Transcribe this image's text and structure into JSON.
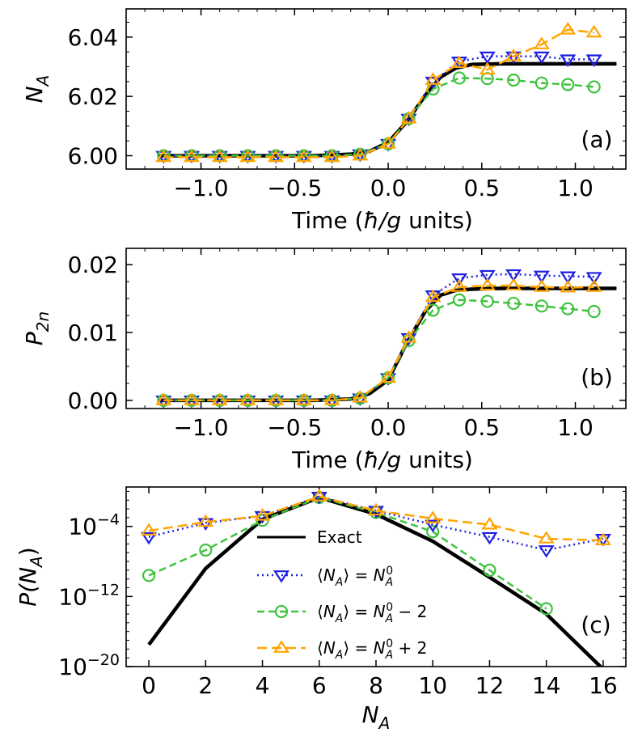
{
  "colors": {
    "exact": "#000000",
    "mean": "#1f1fe0",
    "minus2": "#3fc33f",
    "plus2": "#ffa500"
  },
  "chart_data": [
    {
      "type": "line",
      "panel": "(a)",
      "xlabel": "Time (ħ/g units)",
      "ylabel": "N_A",
      "ylabel_main": "N",
      "ylabel_sub": "A",
      "xlim": [
        -1.4,
        1.27
      ],
      "ylim": [
        5.9955,
        6.0495
      ],
      "xticks": [
        -1.0,
        -0.5,
        0.0,
        0.5,
        1.0
      ],
      "xtick_labels": [
        "−1.0",
        "−0.5",
        "0.0",
        "0.5",
        "1.0"
      ],
      "yticks": [
        6.0,
        6.02,
        6.04
      ],
      "ytick_labels": [
        "6.00",
        "6.02",
        "6.04"
      ],
      "series": [
        {
          "name": "Exact",
          "key": "exact",
          "x": [
            -1.22,
            -0.4,
            -0.2,
            -0.1,
            0.0,
            0.1,
            0.2,
            0.28,
            0.36,
            0.45,
            0.6,
            0.8,
            1.0,
            1.22
          ],
          "y": [
            6.0,
            6.0,
            6.0005,
            6.0015,
            6.0045,
            6.0115,
            6.0205,
            6.0265,
            6.0295,
            6.0308,
            6.031,
            6.031,
            6.031,
            6.031
          ]
        },
        {
          "name": "⟨N_A⟩ = N_A^0",
          "key": "mean",
          "x": [
            -1.2,
            -1.05,
            -0.9,
            -0.75,
            -0.6,
            -0.45,
            -0.3,
            -0.15,
            0.0,
            0.11,
            0.24,
            0.38,
            0.53,
            0.67,
            0.82,
            0.96,
            1.1
          ],
          "y": [
            6.0,
            6.0,
            6.0,
            6.0,
            6.0,
            6.0,
            6.0,
            6.0005,
            6.004,
            6.0125,
            6.025,
            6.0318,
            6.0335,
            6.0335,
            6.0335,
            6.0325,
            6.0325
          ]
        },
        {
          "name": "⟨N_A⟩ = N_A^0 − 2",
          "key": "minus2",
          "x": [
            -1.2,
            -1.05,
            -0.9,
            -0.75,
            -0.6,
            -0.45,
            -0.3,
            -0.15,
            0.0,
            0.11,
            0.24,
            0.38,
            0.53,
            0.67,
            0.82,
            0.96,
            1.1
          ],
          "y": [
            6.0,
            6.0,
            6.0,
            6.0,
            6.0,
            6.0,
            6.0,
            6.0005,
            6.004,
            6.0125,
            6.0225,
            6.0262,
            6.026,
            6.0255,
            6.0245,
            6.024,
            6.0232
          ]
        },
        {
          "name": "⟨N_A⟩ = N_A^0 + 2",
          "key": "plus2",
          "x": [
            -1.2,
            -1.05,
            -0.9,
            -0.75,
            -0.6,
            -0.45,
            -0.3,
            -0.15,
            0.0,
            0.11,
            0.24,
            0.38,
            0.53,
            0.67,
            0.82,
            0.96,
            1.1
          ],
          "y": [
            5.9995,
            5.9995,
            5.9995,
            5.9995,
            5.9995,
            5.9995,
            5.9995,
            6.0,
            6.004,
            6.0125,
            6.0255,
            6.0312,
            6.029,
            6.0335,
            6.0375,
            6.0425,
            6.0415
          ]
        }
      ]
    },
    {
      "type": "line",
      "panel": "(b)",
      "xlabel": "Time (ħ/g units)",
      "ylabel": "P_2n",
      "ylabel_main": "P",
      "ylabel_sub": "2n",
      "xlim": [
        -1.4,
        1.27
      ],
      "ylim": [
        -0.0012,
        0.0224
      ],
      "xticks": [
        -1.0,
        -0.5,
        0.0,
        0.5,
        1.0
      ],
      "xtick_labels": [
        "−1.0",
        "−0.5",
        "0.0",
        "0.5",
        "1.0"
      ],
      "yticks": [
        0.0,
        0.01,
        0.02
      ],
      "ytick_labels": [
        "0.00",
        "0.01",
        "0.02"
      ],
      "series": [
        {
          "name": "Exact",
          "key": "exact",
          "x": [
            -1.22,
            -0.4,
            -0.2,
            -0.1,
            0.0,
            0.1,
            0.2,
            0.28,
            0.36,
            0.45,
            0.6,
            0.8,
            1.0,
            1.22
          ],
          "y": [
            0.0,
            0.0,
            0.0002,
            0.001,
            0.003,
            0.0085,
            0.0132,
            0.0155,
            0.0162,
            0.0164,
            0.0165,
            0.0165,
            0.0165,
            0.0165
          ]
        },
        {
          "name": "⟨N_A⟩ = N_A^0",
          "key": "mean",
          "x": [
            -1.2,
            -1.05,
            -0.9,
            -0.75,
            -0.6,
            -0.45,
            -0.3,
            -0.15,
            0.0,
            0.11,
            0.24,
            0.38,
            0.53,
            0.67,
            0.82,
            0.96,
            1.1
          ],
          "y": [
            0.0,
            0.0,
            0.0,
            0.0,
            0.0,
            0.0,
            0.0,
            0.0003,
            0.0033,
            0.0092,
            0.0155,
            0.018,
            0.0185,
            0.0186,
            0.0184,
            0.0183,
            0.0182
          ]
        },
        {
          "name": "⟨N_A⟩ = N_A^0 − 2",
          "key": "minus2",
          "x": [
            -1.2,
            -1.05,
            -0.9,
            -0.75,
            -0.6,
            -0.45,
            -0.3,
            -0.15,
            0.0,
            0.11,
            0.24,
            0.38,
            0.53,
            0.67,
            0.82,
            0.96,
            1.1
          ],
          "y": [
            0.0,
            0.0,
            0.0,
            0.0,
            0.0,
            0.0,
            0.0,
            0.0003,
            0.0033,
            0.0088,
            0.0133,
            0.0148,
            0.0146,
            0.0143,
            0.0139,
            0.0135,
            0.0131
          ]
        },
        {
          "name": "⟨N_A⟩ = N_A^0 + 2",
          "key": "plus2",
          "x": [
            -1.2,
            -1.05,
            -0.9,
            -0.75,
            -0.6,
            -0.45,
            -0.3,
            -0.15,
            0.0,
            0.11,
            0.24,
            0.38,
            0.53,
            0.67,
            0.82,
            0.96,
            1.1
          ],
          "y": [
            0.0,
            0.0,
            0.0,
            0.0,
            0.0,
            0.0,
            0.0,
            0.0004,
            0.0033,
            0.0092,
            0.0152,
            0.0167,
            0.0169,
            0.0169,
            0.0167,
            0.0166,
            0.0167
          ]
        }
      ]
    },
    {
      "type": "line",
      "panel": "(c)",
      "yscale": "log",
      "xlabel": "N_A",
      "xlabel_main": "N",
      "xlabel_sub": "A",
      "ylabel": "P(N_A)",
      "ylabel_main": "P(N",
      "ylabel_sub": "A",
      "ylabel_close": ")",
      "xlim": [
        -0.8,
        16.8
      ],
      "ylim_log10": [
        -20,
        0.5
      ],
      "xticks": [
        0,
        2,
        4,
        6,
        8,
        10,
        12,
        14,
        16
      ],
      "xtick_labels": [
        "0",
        "2",
        "4",
        "6",
        "8",
        "10",
        "12",
        "14",
        "16"
      ],
      "yticks_log10": [
        -4,
        -12,
        -20
      ],
      "ytick_exponents": [
        "−4",
        "−12",
        "−20"
      ],
      "ytick_base": "10",
      "legend_location": "center",
      "series": [
        {
          "name": "Exact",
          "key": "exact",
          "x": [
            0,
            2,
            4,
            6,
            8,
            10,
            12,
            14,
            16
          ],
          "log10_y": [
            -17.5,
            -8.8,
            -3.2,
            -0.7,
            -2.6,
            -5.7,
            -9.8,
            -14.0,
            -20.3
          ]
        },
        {
          "name": "⟨N_A⟩ = N_A^0",
          "key": "mean",
          "x": [
            0,
            2,
            4,
            6,
            8,
            10,
            12,
            14,
            16
          ],
          "log10_y": [
            -5.2,
            -3.6,
            -2.8,
            -0.6,
            -2.2,
            -3.8,
            -5.2,
            -6.7,
            -5.4
          ]
        },
        {
          "name": "⟨N_A⟩ = N_A^0 − 2",
          "key": "minus2",
          "x": [
            0,
            2,
            4,
            6,
            8,
            10,
            12,
            14
          ],
          "log10_y": [
            -9.6,
            -6.7,
            -3.3,
            -0.7,
            -2.4,
            -4.6,
            -9.0,
            -13.4
          ]
        },
        {
          "name": "⟨N_A⟩ = N_A^0 + 2",
          "key": "plus2",
          "x": [
            0,
            2,
            4,
            6,
            8,
            10,
            12,
            14,
            16
          ],
          "log10_y": [
            -4.5,
            -3.5,
            -2.8,
            -0.6,
            -2.2,
            -3.1,
            -3.8,
            -5.4,
            -5.6
          ]
        }
      ]
    }
  ]
}
